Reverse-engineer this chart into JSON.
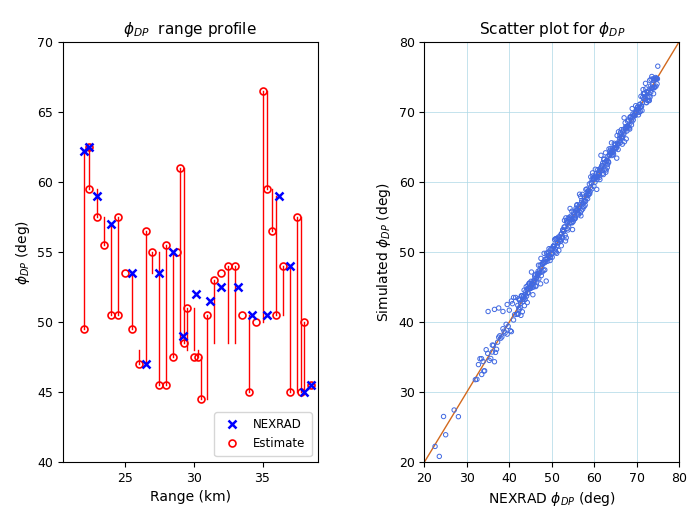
{
  "left_title": "$\\phi_{DP}$  range profile",
  "right_title": "Scatter plot for $\\phi_{DP}$",
  "left_xlabel": "Range (km)",
  "left_ylabel": "$\\phi_{DP}$ (deg)",
  "right_xlabel": "NEXRAD $\\phi_{DP}$ (deg)",
  "right_ylabel": "Simulated $\\phi_{DP}$ (deg)",
  "left_xlim": [
    20.5,
    39.0
  ],
  "left_ylim": [
    40,
    70
  ],
  "right_xlim": [
    20,
    80
  ],
  "right_ylim": [
    20,
    80
  ],
  "left_xticks": [
    25,
    30,
    35
  ],
  "left_yticks": [
    40,
    45,
    50,
    55,
    60,
    65,
    70
  ],
  "right_xticks": [
    20,
    30,
    40,
    50,
    60,
    70,
    80
  ],
  "right_yticks": [
    20,
    30,
    40,
    50,
    60,
    70,
    80
  ],
  "nexrad_color": "#0000ff",
  "estimate_color": "#ff0000",
  "scatter_color": "#4169e1",
  "ref_line_color": "#d2691e",
  "background_color": "#ffffff",
  "nexrad_x": [
    22.0,
    22.4,
    23.0,
    24.0,
    25.5,
    26.5,
    27.5,
    28.5,
    29.2,
    30.2,
    31.2,
    32.0,
    33.2,
    34.2,
    35.3,
    36.2,
    37.0,
    38.0,
    38.5
  ],
  "nexrad_y": [
    62.2,
    62.5,
    59.0,
    57.0,
    53.5,
    47.0,
    53.5,
    55.0,
    49.0,
    52.0,
    51.5,
    52.5,
    52.5,
    50.5,
    50.5,
    59.0,
    54.0,
    45.0,
    45.5
  ],
  "estimate_segments": [
    [
      [
        22.0,
        22.0
      ],
      [
        49.5,
        62.2
      ]
    ],
    [
      [
        22.4,
        22.4
      ],
      [
        62.5,
        62.5
      ]
    ],
    [
      [
        22.4,
        22.4
      ],
      [
        59.5,
        62.5
      ]
    ],
    [
      [
        23.0,
        23.0
      ],
      [
        57.5,
        59.5
      ]
    ],
    [
      [
        23.5,
        23.5
      ],
      [
        55.5,
        57.5
      ]
    ],
    [
      [
        24.0,
        24.0
      ],
      [
        50.5,
        57.0
      ]
    ],
    [
      [
        24.5,
        24.5
      ],
      [
        57.5,
        57.5
      ]
    ],
    [
      [
        24.5,
        24.5
      ],
      [
        50.5,
        57.5
      ]
    ],
    [
      [
        25.0,
        25.0
      ],
      [
        53.5,
        53.5
      ]
    ],
    [
      [
        25.5,
        25.5
      ],
      [
        49.5,
        53.5
      ]
    ],
    [
      [
        26.0,
        26.0
      ],
      [
        47.0,
        48.0
      ]
    ],
    [
      [
        26.5,
        26.5
      ],
      [
        47.0,
        56.5
      ]
    ],
    [
      [
        27.0,
        27.0
      ],
      [
        53.5,
        55.0
      ]
    ],
    [
      [
        27.5,
        27.5
      ],
      [
        45.5,
        55.0
      ]
    ],
    [
      [
        28.0,
        28.0
      ],
      [
        55.5,
        55.5
      ]
    ],
    [
      [
        28.0,
        28.0
      ],
      [
        45.5,
        55.5
      ]
    ],
    [
      [
        28.5,
        28.5
      ],
      [
        47.5,
        55.0
      ]
    ],
    [
      [
        28.8,
        28.8
      ],
      [
        55.0,
        55.0
      ]
    ],
    [
      [
        29.0,
        29.0
      ],
      [
        48.5,
        61.0
      ]
    ],
    [
      [
        29.3,
        29.3
      ],
      [
        48.5,
        61.0
      ]
    ],
    [
      [
        29.5,
        29.5
      ],
      [
        48.0,
        51.0
      ]
    ],
    [
      [
        30.0,
        30.0
      ],
      [
        48.0,
        51.0
      ]
    ],
    [
      [
        30.3,
        30.3
      ],
      [
        48.0,
        47.5
      ]
    ],
    [
      [
        30.5,
        30.5
      ],
      [
        44.5,
        47.5
      ]
    ],
    [
      [
        31.0,
        31.0
      ],
      [
        44.5,
        50.5
      ]
    ],
    [
      [
        31.5,
        31.5
      ],
      [
        48.5,
        53.0
      ]
    ],
    [
      [
        32.0,
        32.0
      ],
      [
        53.5,
        53.5
      ]
    ],
    [
      [
        32.5,
        32.5
      ],
      [
        48.5,
        54.0
      ]
    ],
    [
      [
        33.0,
        33.0
      ],
      [
        48.5,
        54.0
      ]
    ],
    [
      [
        33.5,
        33.5
      ],
      [
        50.5,
        50.5
      ]
    ],
    [
      [
        34.0,
        34.0
      ],
      [
        45.0,
        50.5
      ]
    ],
    [
      [
        34.5,
        34.5
      ],
      [
        50.0,
        50.0
      ]
    ],
    [
      [
        35.0,
        35.0
      ],
      [
        50.0,
        66.5
      ]
    ],
    [
      [
        35.3,
        35.3
      ],
      [
        59.5,
        66.5
      ]
    ],
    [
      [
        35.7,
        35.7
      ],
      [
        56.5,
        59.5
      ]
    ],
    [
      [
        36.0,
        36.0
      ],
      [
        50.5,
        59.0
      ]
    ],
    [
      [
        36.5,
        36.5
      ],
      [
        50.5,
        54.0
      ]
    ],
    [
      [
        37.0,
        37.0
      ],
      [
        45.0,
        54.0
      ]
    ],
    [
      [
        37.5,
        37.5
      ],
      [
        45.0,
        57.5
      ]
    ],
    [
      [
        37.8,
        37.8
      ],
      [
        45.0,
        57.5
      ]
    ],
    [
      [
        38.0,
        38.0
      ],
      [
        45.0,
        50.0
      ]
    ],
    [
      [
        38.5,
        38.5
      ],
      [
        45.5,
        45.5
      ]
    ]
  ],
  "estimate_points_x": [
    22.0,
    22.4,
    22.4,
    23.0,
    23.5,
    24.0,
    24.5,
    24.5,
    25.0,
    25.5,
    26.0,
    26.5,
    27.0,
    27.5,
    28.0,
    28.0,
    28.5,
    28.8,
    29.0,
    29.3,
    29.5,
    30.0,
    30.3,
    30.5,
    31.0,
    31.5,
    32.0,
    32.5,
    33.0,
    33.5,
    34.0,
    34.5,
    35.0,
    35.3,
    35.7,
    36.0,
    36.5,
    37.0,
    37.5,
    37.8,
    38.0,
    38.5
  ],
  "estimate_points_y": [
    49.5,
    62.5,
    59.5,
    57.5,
    55.5,
    50.5,
    57.5,
    50.5,
    53.5,
    49.5,
    47.0,
    56.5,
    55.0,
    45.5,
    55.5,
    45.5,
    47.5,
    55.0,
    61.0,
    48.5,
    51.0,
    47.5,
    47.5,
    44.5,
    50.5,
    53.0,
    53.5,
    54.0,
    54.0,
    50.5,
    45.0,
    50.0,
    66.5,
    59.5,
    56.5,
    50.5,
    54.0,
    45.0,
    57.5,
    45.0,
    50.0,
    45.5
  ]
}
